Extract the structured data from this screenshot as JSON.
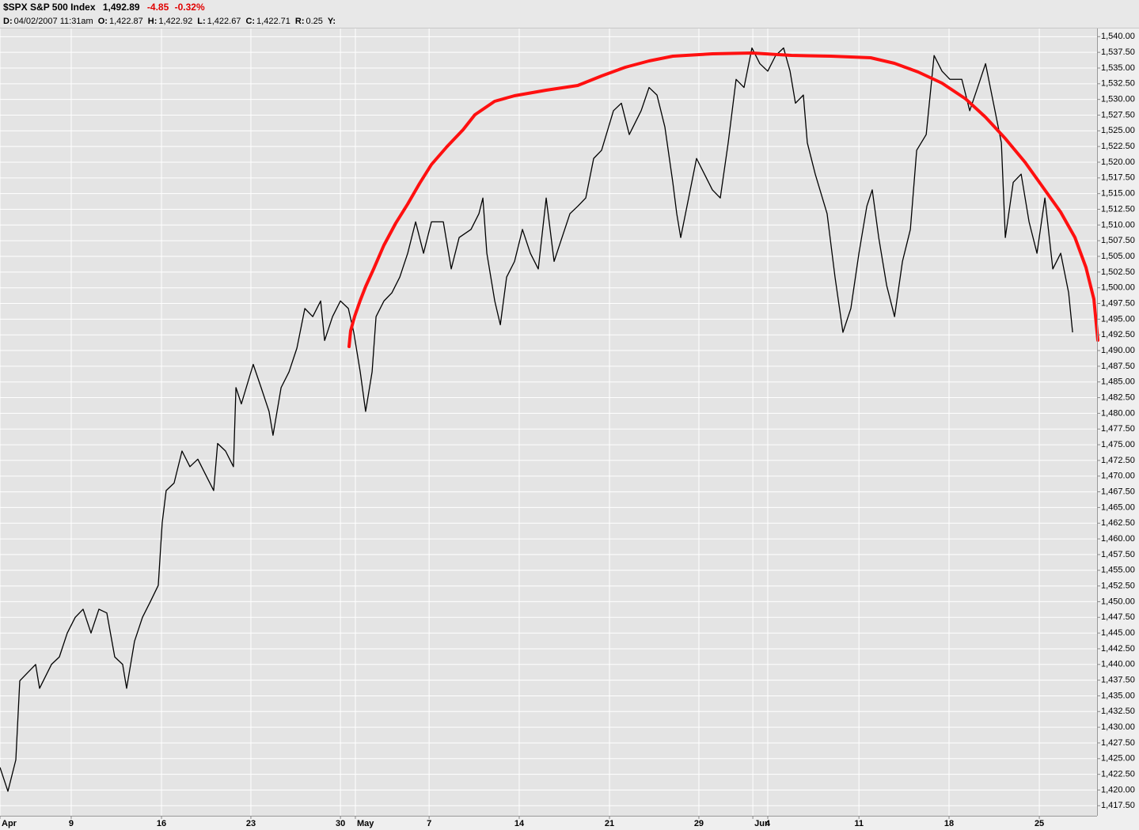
{
  "chart_data": {
    "type": "line",
    "title": "$SPX S&P 500 Index",
    "header": {
      "last": "1,492.89",
      "change": "-4.85",
      "change_pct": "-0.32%",
      "readout": [
        {
          "label": "D:",
          "value": "04/02/2007 11:31am"
        },
        {
          "label": "O:",
          "value": "1,422.87"
        },
        {
          "label": "H:",
          "value": "1,422.92"
        },
        {
          "label": "L:",
          "value": "1,422.67"
        },
        {
          "label": "C:",
          "value": "1,422.71"
        },
        {
          "label": "R:",
          "value": "0.25"
        },
        {
          "label": "Y:"
        }
      ]
    },
    "x": [
      0,
      0.44,
      0.88,
      1.1,
      1.54,
      1.98,
      2.2,
      2.86,
      3.3,
      3.74,
      4.18,
      4.62,
      5.06,
      5.5,
      5.94,
      6.38,
      6.82,
      7.04,
      7.48,
      7.92,
      8.36,
      8.8,
      9.02,
      9.24,
      9.68,
      10.12,
      10.56,
      11,
      11.44,
      11.88,
      12.1,
      12.54,
      12.98,
      13.12,
      13.42,
      14.08,
      14.52,
      14.96,
      15.18,
      15.63,
      16.07,
      16.51,
      16.95,
      17.39,
      17.83,
      18.05,
      18.49,
      18.93,
      19.37,
      19.67,
      20.03,
      20.33,
      20.69,
      20.91,
      21.35,
      21.79,
      22.23,
      22.67,
      23.11,
      23.55,
      23.99,
      24.65,
      25.09,
      25.53,
      26.19,
      26.63,
      26.85,
      27.07,
      27.51,
      27.82,
      28.17,
      28.61,
      29.05,
      29.49,
      29.93,
      30.37,
      30.81,
      31.25,
      31.69,
      32.13,
      32.57,
      33.01,
      33.45,
      34.11,
      34.55,
      34.99,
      35.65,
      36.09,
      36.53,
      36.97,
      37.41,
      37.63,
      37.85,
      38.29,
      38.73,
      39.17,
      39.61,
      40.05,
      40.49,
      40.93,
      41.37,
      41.81,
      42.25,
      42.69,
      43.13,
      43.57,
      43.93,
      44.23,
      44.67,
      44.89,
      45.33,
      45.99,
      46.43,
      46.87,
      47.31,
      47.76,
      48.2,
      48.5,
      48.86,
      49.3,
      49.74,
      50.18,
      50.62,
      50.97,
      51.5,
      51.94,
      52.38,
      52.82,
      53.48,
      53.92,
      54.36,
      54.8,
      55.24,
      55.68,
      55.9,
      56.34,
      56.78,
      57.22,
      57.66,
      58.1,
      58.54,
      58.98,
      59.42,
      59.64
    ],
    "series": [
      {
        "color": "#000000",
        "values": [
          1423.6,
          1419.8,
          1424.8,
          1437.4,
          1438.7,
          1440.0,
          1436.2,
          1440.0,
          1441.2,
          1445.0,
          1447.5,
          1448.8,
          1445.0,
          1448.8,
          1448.2,
          1441.2,
          1440.0,
          1436.2,
          1443.7,
          1447.5,
          1450.0,
          1452.6,
          1462.6,
          1467.7,
          1468.9,
          1474.0,
          1471.5,
          1472.7,
          1470.2,
          1467.7,
          1475.2,
          1474.0,
          1471.5,
          1484.1,
          1481.5,
          1487.8,
          1484.1,
          1480.3,
          1476.5,
          1484.1,
          1486.6,
          1490.4,
          1496.7,
          1495.4,
          1497.9,
          1491.6,
          1495.4,
          1497.9,
          1496.7,
          1492.9,
          1486.6,
          1480.3,
          1486.6,
          1495.4,
          1497.9,
          1499.2,
          1501.7,
          1505.5,
          1510.5,
          1505.5,
          1510.5,
          1510.5,
          1503.0,
          1508.0,
          1509.3,
          1511.8,
          1514.3,
          1505.5,
          1497.9,
          1494.1,
          1501.7,
          1504.2,
          1509.3,
          1505.5,
          1503.0,
          1514.3,
          1504.2,
          1508.0,
          1511.8,
          1513.0,
          1514.3,
          1520.6,
          1521.9,
          1528.2,
          1529.4,
          1524.4,
          1528.2,
          1531.9,
          1530.7,
          1525.6,
          1516.8,
          1511.8,
          1508.0,
          1514.3,
          1520.6,
          1518.1,
          1515.6,
          1514.3,
          1523.1,
          1533.2,
          1531.9,
          1538.2,
          1535.7,
          1534.5,
          1537.0,
          1538.2,
          1534.5,
          1529.4,
          1530.7,
          1523.1,
          1518.1,
          1511.8,
          1501.7,
          1492.9,
          1496.7,
          1505.5,
          1513.0,
          1515.6,
          1508.0,
          1500.4,
          1495.4,
          1504.2,
          1509.3,
          1521.9,
          1524.4,
          1537.0,
          1534.5,
          1533.2,
          1533.2,
          1528.2,
          1531.9,
          1535.7,
          1529.4,
          1523.1,
          1508.0,
          1516.8,
          1518.1,
          1510.5,
          1505.5,
          1514.3,
          1503.0,
          1505.5,
          1499.2,
          1492.9
        ]
      }
    ],
    "xlim": [
      0,
      61
    ],
    "xticks": [
      {
        "value": 0,
        "label": "Apr"
      },
      {
        "value": 3.96,
        "label": "9"
      },
      {
        "value": 8.98,
        "label": "16"
      },
      {
        "value": 13.95,
        "label": "23"
      },
      {
        "value": 18.93,
        "label": "30"
      },
      {
        "value": 19.76,
        "label": "May"
      },
      {
        "value": 23.86,
        "label": "7"
      },
      {
        "value": 28.87,
        "label": "14"
      },
      {
        "value": 33.89,
        "label": "21"
      },
      {
        "value": 38.86,
        "label": "29"
      },
      {
        "value": 41.86,
        "label": "Jun"
      },
      {
        "value": 42.69,
        "label": "4"
      },
      {
        "value": 47.76,
        "label": "11"
      },
      {
        "value": 52.77,
        "label": "18"
      },
      {
        "value": 57.79,
        "label": "25"
      }
    ],
    "ylim": [
      1415.9,
      1541.3
    ],
    "yticks": [
      {
        "value": 1417.5,
        "label": "1,417.50"
      },
      {
        "value": 1420,
        "label": "1,420.00"
      },
      {
        "value": 1422.5,
        "label": "1,422.50"
      },
      {
        "value": 1425,
        "label": "1,425.00"
      },
      {
        "value": 1427.5,
        "label": "1,427.50"
      },
      {
        "value": 1430,
        "label": "1,430.00"
      },
      {
        "value": 1432.5,
        "label": "1,432.50"
      },
      {
        "value": 1435,
        "label": "1,435.00"
      },
      {
        "value": 1437.5,
        "label": "1,437.50"
      },
      {
        "value": 1440,
        "label": "1,440.00"
      },
      {
        "value": 1442.5,
        "label": "1,442.50"
      },
      {
        "value": 1445,
        "label": "1,445.00"
      },
      {
        "value": 1447.5,
        "label": "1,447.50"
      },
      {
        "value": 1450,
        "label": "1,450.00"
      },
      {
        "value": 1452.5,
        "label": "1,452.50"
      },
      {
        "value": 1455,
        "label": "1,455.00"
      },
      {
        "value": 1457.5,
        "label": "1,457.50"
      },
      {
        "value": 1460,
        "label": "1,460.00"
      },
      {
        "value": 1462.5,
        "label": "1,462.50"
      },
      {
        "value": 1465,
        "label": "1,465.00"
      },
      {
        "value": 1467.5,
        "label": "1,467.50"
      },
      {
        "value": 1470,
        "label": "1,470.00"
      },
      {
        "value": 1472.5,
        "label": "1,472.50"
      },
      {
        "value": 1475,
        "label": "1,475.00"
      },
      {
        "value": 1477.5,
        "label": "1,477.50"
      },
      {
        "value": 1480,
        "label": "1,480.00"
      },
      {
        "value": 1482.5,
        "label": "1,482.50"
      },
      {
        "value": 1485,
        "label": "1,485.00"
      },
      {
        "value": 1487.5,
        "label": "1,487.50"
      },
      {
        "value": 1490,
        "label": "1,490.00"
      },
      {
        "value": 1492.5,
        "label": "1,492.50"
      },
      {
        "value": 1495,
        "label": "1,495.00"
      },
      {
        "value": 1497.5,
        "label": "1,497.50"
      },
      {
        "value": 1500,
        "label": "1,500.00"
      },
      {
        "value": 1502.5,
        "label": "1,502.50"
      },
      {
        "value": 1505,
        "label": "1,505.00"
      },
      {
        "value": 1507.5,
        "label": "1,507.50"
      },
      {
        "value": 1510,
        "label": "1,510.00"
      },
      {
        "value": 1512.5,
        "label": "1,512.50"
      },
      {
        "value": 1515,
        "label": "1,515.00"
      },
      {
        "value": 1517.5,
        "label": "1,517.50"
      },
      {
        "value": 1520,
        "label": "1,520.00"
      },
      {
        "value": 1522.5,
        "label": "1,522.50"
      },
      {
        "value": 1525,
        "label": "1,525.00"
      },
      {
        "value": 1527.5,
        "label": "1,527.50"
      },
      {
        "value": 1530,
        "label": "1,530.00"
      },
      {
        "value": 1532.5,
        "label": "1,532.50"
      },
      {
        "value": 1535,
        "label": "1,535.00"
      },
      {
        "value": 1537.5,
        "label": "1,537.50"
      },
      {
        "value": 1540,
        "label": "1,540.00"
      }
    ],
    "grid": true
  }
}
